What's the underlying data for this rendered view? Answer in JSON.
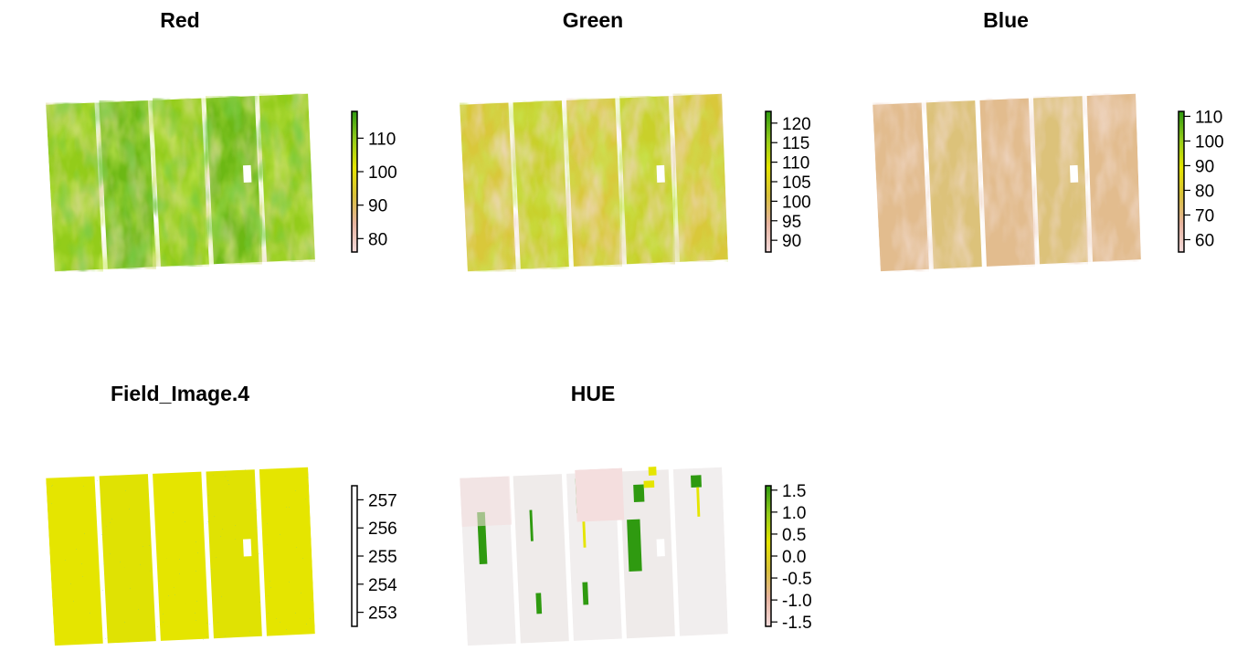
{
  "chart_data": [
    {
      "type": "heatmap",
      "title": "Red",
      "legend_ticks": [
        110,
        100,
        90,
        80
      ],
      "range": [
        76,
        118
      ],
      "colors": [
        "#f3dada",
        "#e8b4a0",
        "#d9c13a",
        "#e5e500",
        "#93cc1a",
        "#2f9a10"
      ],
      "field_mean_level": 0.62,
      "grid": false
    },
    {
      "type": "heatmap",
      "title": "Green",
      "legend_ticks": [
        120,
        115,
        110,
        105,
        100,
        95,
        90
      ],
      "range": [
        87,
        123
      ],
      "colors": [
        "#f3dada",
        "#e8b4a0",
        "#d9c13a",
        "#e5e500",
        "#93cc1a",
        "#2f9a10"
      ],
      "field_mean_level": 0.5,
      "grid": false
    },
    {
      "type": "heatmap",
      "title": "Blue",
      "legend_ticks": [
        110,
        100,
        90,
        80,
        70,
        60
      ],
      "range": [
        55,
        112
      ],
      "colors": [
        "#f3dada",
        "#e8b4a0",
        "#d9c13a",
        "#e5e500",
        "#93cc1a",
        "#2f9a10"
      ],
      "field_mean_level": 0.3,
      "grid": false
    },
    {
      "type": "heatmap",
      "title": "Field_Image.4",
      "legend_ticks": [
        257,
        256,
        255,
        254,
        253
      ],
      "range": [
        252.5,
        257.5
      ],
      "colors": [
        "#ffffff",
        "#ffffff"
      ],
      "field_mean_level": 0.5,
      "grid": false
    },
    {
      "type": "heatmap",
      "title": "HUE",
      "legend_ticks": [
        1.5,
        1.0,
        0.5,
        0.0,
        -0.5,
        -1.0,
        -1.5
      ],
      "range": [
        -1.6,
        1.6
      ],
      "colors": [
        "#f3dada",
        "#e8b4a0",
        "#d9c13a",
        "#e5e500",
        "#93cc1a",
        "#2f9a10"
      ],
      "field_mean_level": 0.1,
      "grid": false
    }
  ]
}
